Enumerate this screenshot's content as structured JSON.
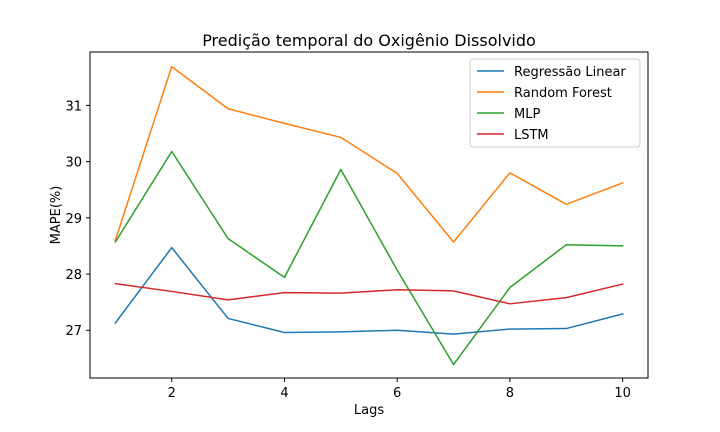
{
  "chart_data": {
    "type": "line",
    "title": "Predição temporal do Oxigênio Dissolvido",
    "xlabel": "Lags",
    "ylabel": "MAPE(%)",
    "x": [
      1,
      2,
      3,
      4,
      5,
      6,
      7,
      8,
      9,
      10
    ],
    "xlim": [
      0.55,
      10.45
    ],
    "ylim": [
      26.15,
      31.95
    ],
    "xticks": [
      2,
      4,
      6,
      8,
      10
    ],
    "yticks": [
      27,
      28,
      29,
      30,
      31
    ],
    "grid": false,
    "legend_position": "top-right",
    "series": [
      {
        "name": "Regressão Linear",
        "color": "#1f77b4",
        "values": [
          27.13,
          28.47,
          27.21,
          26.96,
          26.97,
          27.0,
          26.93,
          27.02,
          27.03,
          27.29
        ]
      },
      {
        "name": "Random Forest",
        "color": "#ff7f0e",
        "values": [
          28.6,
          31.69,
          30.94,
          30.68,
          30.43,
          29.79,
          28.57,
          29.8,
          29.24,
          29.62
        ]
      },
      {
        "name": "MLP",
        "color": "#2ca02c",
        "values": [
          28.57,
          30.18,
          28.63,
          27.94,
          29.86,
          28.07,
          26.39,
          27.76,
          28.52,
          28.5
        ]
      },
      {
        "name": "LSTM",
        "color": "#d62728",
        "values": [
          27.83,
          27.69,
          27.54,
          27.67,
          27.66,
          27.72,
          27.7,
          27.47,
          27.58,
          27.82
        ]
      }
    ]
  }
}
